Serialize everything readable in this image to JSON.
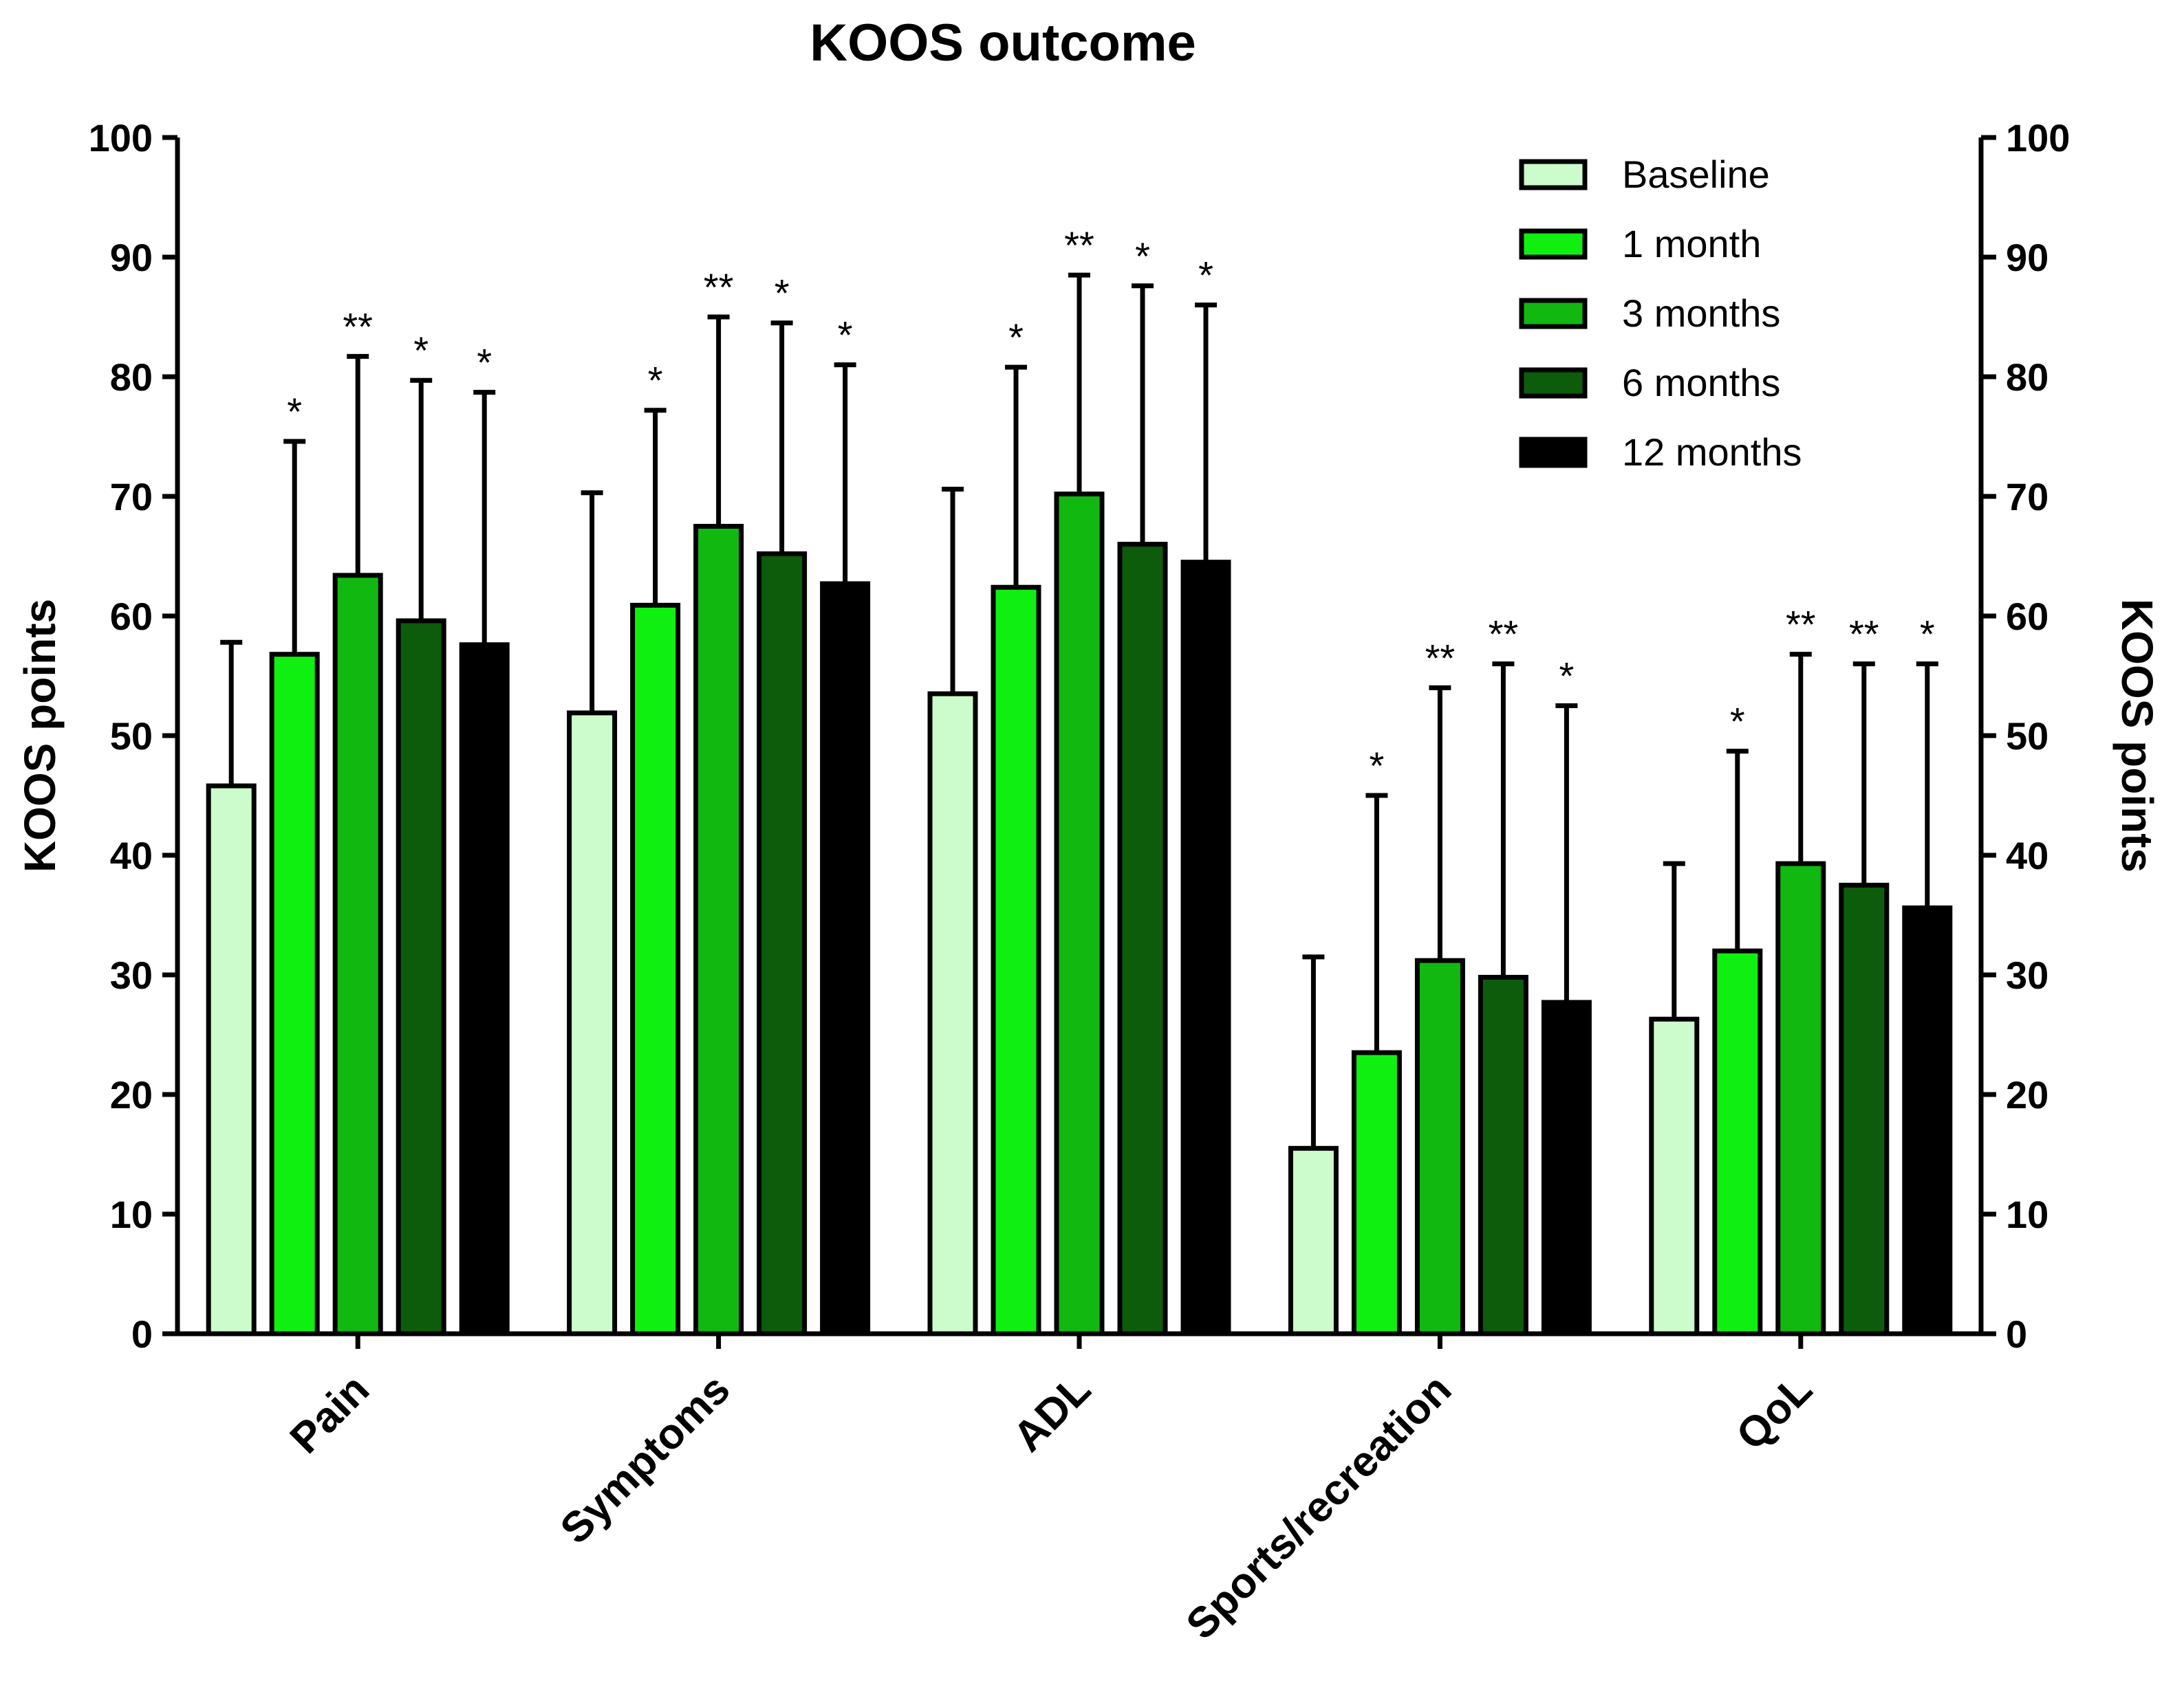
{
  "chart_data": {
    "type": "bar",
    "title": "KOOS outcome",
    "ylabel": "KOOS points",
    "ylabel_right": "KOOS points",
    "xlabel": "",
    "ylim": [
      0,
      100
    ],
    "yticks": [
      0,
      10,
      20,
      30,
      40,
      50,
      60,
      70,
      80,
      90,
      100
    ],
    "categories": [
      "Pain",
      "Symptoms",
      "ADL",
      "Sports/recreation",
      "QoL"
    ],
    "legend_position": "top-right",
    "grid": false,
    "series": [
      {
        "name": "Baseline",
        "color": "#ccfccc",
        "values": [
          45.8,
          51.9,
          53.5,
          15.5,
          26.3
        ],
        "error_upper": [
          57.8,
          70.3,
          70.6,
          31.5,
          39.3
        ],
        "significance": [
          "",
          "",
          "",
          "",
          ""
        ]
      },
      {
        "name": "1 month",
        "color": "#10f010",
        "values": [
          56.8,
          60.9,
          62.4,
          23.5,
          32.0
        ],
        "error_upper": [
          74.6,
          77.2,
          80.8,
          45.0,
          48.7
        ],
        "significance": [
          "*",
          "*",
          "*",
          "*",
          "*"
        ]
      },
      {
        "name": "3 months",
        "color": "#10b810",
        "values": [
          63.4,
          67.5,
          70.2,
          31.2,
          39.3
        ],
        "error_upper": [
          81.7,
          85.0,
          88.5,
          54.0,
          56.8
        ],
        "significance": [
          "**",
          "**",
          "**",
          "**",
          "**"
        ]
      },
      {
        "name": "6 months",
        "color": "#0c5c0c",
        "values": [
          59.6,
          65.2,
          66.0,
          29.8,
          37.5
        ],
        "error_upper": [
          79.7,
          84.5,
          87.6,
          56.0,
          56.0
        ],
        "significance": [
          "*",
          "*",
          "*",
          "**",
          "**"
        ]
      },
      {
        "name": "12 months",
        "color": "#000000",
        "values": [
          57.6,
          62.7,
          64.5,
          27.7,
          35.6
        ],
        "error_upper": [
          78.7,
          81.0,
          86.0,
          52.5,
          56.0
        ],
        "significance": [
          "*",
          "*",
          "*",
          "*",
          "*"
        ]
      }
    ]
  }
}
